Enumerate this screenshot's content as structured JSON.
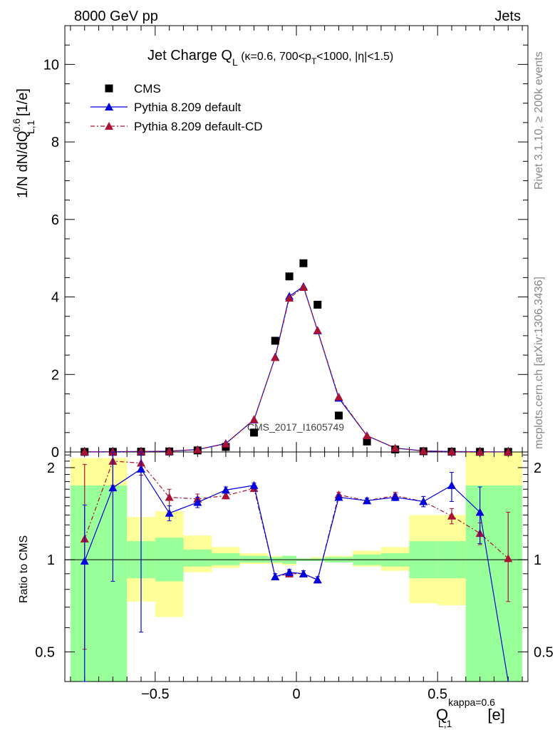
{
  "header": {
    "left": "8000 GeV pp",
    "right": "Jets"
  },
  "side_text": {
    "rivet": "Rivet 3.1.10, ≥ 200k events",
    "mcplots": "mcplots.cern.ch [arXiv:1306.3436]"
  },
  "colors": {
    "data": "#000000",
    "default": "#0000dd",
    "default_cd": "#aa1133",
    "band_inner": "#99ff99",
    "band_outer": "#ffff99"
  },
  "chart_data": [
    {
      "type": "scatter",
      "title_main": "Jet Charge Q",
      "title_sub": "L",
      "title_rest": " (κ=0.6, 700<p",
      "title_sub2": "T",
      "title_tail": "<1000, |η|<1.5)",
      "ylabel": "1/N dN/dQ",
      "ylabel_sup": "0.6",
      "ylabel_sub": "L,1",
      "ylabel_unit": " [1/e]",
      "watermark": "CMS_2017_I1605749",
      "ylim": [
        0,
        11
      ],
      "yticks": [
        0,
        2,
        4,
        6,
        8,
        10
      ],
      "legend": [
        {
          "label": "CMS",
          "marker": "square",
          "color": "#000000"
        },
        {
          "label": "Pythia 8.209 default",
          "marker": "triangle",
          "color": "#0000dd",
          "style": "solid"
        },
        {
          "label": "Pythia 8.209 default-CD",
          "marker": "triangle",
          "color": "#aa1133",
          "style": "dashdot"
        }
      ],
      "x": [
        -0.75,
        -0.65,
        -0.55,
        -0.45,
        -0.35,
        -0.25,
        -0.15,
        -0.075,
        -0.025,
        0.025,
        0.075,
        0.15,
        0.25,
        0.35,
        0.45,
        0.55,
        0.65,
        0.75
      ],
      "series": [
        {
          "name": "CMS",
          "values": [
            0.003,
            0.004,
            0.007,
            0.014,
            0.04,
            0.13,
            0.5,
            2.87,
            4.53,
            4.87,
            3.8,
            0.94,
            0.27,
            0.065,
            0.019,
            0.007,
            0.004,
            0.003
          ]
        },
        {
          "name": "Pythia 8.209 default",
          "values": [
            0.003,
            0.007,
            0.013,
            0.02,
            0.062,
            0.22,
            0.83,
            2.45,
            4.02,
            4.27,
            3.13,
            1.39,
            0.42,
            0.1,
            0.028,
            0.012,
            0.006,
            0.001
          ]
        },
        {
          "name": "Pythia 8.209 default-CD",
          "values": [
            0.004,
            0.008,
            0.014,
            0.022,
            0.063,
            0.21,
            0.84,
            2.44,
            3.97,
            4.25,
            3.14,
            1.42,
            0.42,
            0.1,
            0.028,
            0.01,
            0.005,
            0.003
          ]
        }
      ]
    },
    {
      "type": "line",
      "ylabel": "Ratio to CMS",
      "ylim": [
        0.4,
        2.25
      ],
      "ytick_labels": [
        "0.5",
        "1",
        "2"
      ],
      "ytick_values": [
        0.5,
        1,
        2
      ],
      "xlim": [
        -0.82,
        0.82
      ],
      "xtick_labels": [
        "−0.5",
        "0",
        "0.5"
      ],
      "xtick_values": [
        -0.5,
        0,
        0.5
      ],
      "xlabel": "Q",
      "xlabel_sup": "kappa=0.6",
      "xlabel_sub": "L,1",
      "xlabel_unit": "[e]",
      "bins": [
        [
          -0.8,
          -0.6
        ],
        [
          -0.6,
          -0.5
        ],
        [
          -0.5,
          -0.4
        ],
        [
          -0.4,
          -0.3
        ],
        [
          -0.3,
          -0.2
        ],
        [
          -0.2,
          -0.1
        ],
        [
          -0.1,
          -0.05
        ],
        [
          -0.05,
          0
        ],
        [
          0,
          0.05
        ],
        [
          0.05,
          0.1
        ],
        [
          0.1,
          0.2
        ],
        [
          0.2,
          0.3
        ],
        [
          0.3,
          0.4
        ],
        [
          0.4,
          0.5
        ],
        [
          0.5,
          0.6
        ],
        [
          0.6,
          0.8
        ]
      ],
      "band_inner": [
        [
          0.4,
          1.75
        ],
        [
          0.87,
          1.15
        ],
        [
          0.85,
          1.18
        ],
        [
          0.95,
          1.08
        ],
        [
          0.96,
          1.05
        ],
        [
          0.98,
          1.03
        ],
        [
          0.98,
          1.02
        ],
        [
          0.97,
          1.03
        ],
        [
          0.99,
          1.01
        ],
        [
          0.99,
          1.01
        ],
        [
          0.98,
          1.02
        ],
        [
          0.96,
          1.04
        ],
        [
          0.95,
          1.05
        ],
        [
          0.87,
          1.15
        ],
        [
          0.87,
          1.15
        ],
        [
          0.4,
          1.75
        ]
      ],
      "band_outer": [
        [
          0.4,
          2.15
        ],
        [
          0.73,
          1.38
        ],
        [
          0.65,
          1.44
        ],
        [
          0.91,
          1.2
        ],
        [
          0.94,
          1.1
        ],
        [
          0.97,
          1.05
        ],
        [
          0.97,
          1.03
        ],
        [
          0.96,
          1.03
        ],
        [
          0.99,
          1.01
        ],
        [
          0.99,
          1.02
        ],
        [
          0.98,
          1.03
        ],
        [
          0.95,
          1.07
        ],
        [
          0.92,
          1.1
        ],
        [
          0.72,
          1.4
        ],
        [
          0.71,
          1.4
        ],
        [
          0.4,
          2.25
        ]
      ],
      "x": [
        -0.75,
        -0.65,
        -0.55,
        -0.45,
        -0.35,
        -0.25,
        -0.15,
        -0.075,
        -0.025,
        0.025,
        0.075,
        0.15,
        0.25,
        0.35,
        0.45,
        0.55,
        0.65,
        0.75
      ],
      "series": [
        {
          "name": "Pythia 8.209 default",
          "values": [
            0.99,
            1.72,
            1.98,
            1.42,
            1.54,
            1.69,
            1.75,
            0.88,
            0.91,
            0.9,
            0.86,
            1.6,
            1.56,
            1.6,
            1.55,
            1.75,
            1.43,
            0.3
          ],
          "err": [
            [
              0.99,
              0.52
            ],
            [
              0.87,
              0.55
            ],
            [
              1.4,
              0.58
            ],
            [
              0.08,
              0.08
            ],
            [
              0.06,
              0.06
            ],
            [
              0.04,
              0.04
            ],
            [
              0.03,
              0.03
            ],
            [
              0.02,
              0.02
            ],
            [
              0.02,
              0.02
            ],
            [
              0.02,
              0.02
            ],
            [
              0.02,
              0.02
            ],
            [
              0.03,
              0.03
            ],
            [
              0.03,
              0.03
            ],
            [
              0.04,
              0.04
            ],
            [
              0.06,
              0.06
            ],
            [
              0.2,
              0.18
            ],
            [
              0.3,
              0.3
            ],
            [
              0,
              0
            ]
          ]
        },
        {
          "name": "Pythia 8.209 default-CD",
          "values": [
            1.17,
            2.1,
            2.07,
            1.6,
            1.58,
            1.62,
            1.71,
            0.88,
            0.9,
            0.9,
            0.86,
            1.63,
            1.56,
            1.62,
            1.55,
            1.39,
            1.22,
            1.01
          ],
          "err": [
            [
              0.66,
              0.88
            ],
            [
              0.35,
              0.35
            ],
            [
              0.18,
              0.23
            ],
            [
              0.1,
              0.1
            ],
            [
              0.06,
              0.06
            ],
            [
              0.04,
              0.04
            ],
            [
              0.03,
              0.03
            ],
            [
              0.02,
              0.02
            ],
            [
              0.02,
              0.02
            ],
            [
              0.02,
              0.02
            ],
            [
              0.02,
              0.02
            ],
            [
              0.03,
              0.03
            ],
            [
              0.03,
              0.03
            ],
            [
              0.04,
              0.04
            ],
            [
              0.06,
              0.06
            ],
            [
              0.08,
              0.08
            ],
            [
              0.1,
              0.1
            ],
            [
              0.28,
              0.42
            ]
          ]
        }
      ]
    }
  ]
}
